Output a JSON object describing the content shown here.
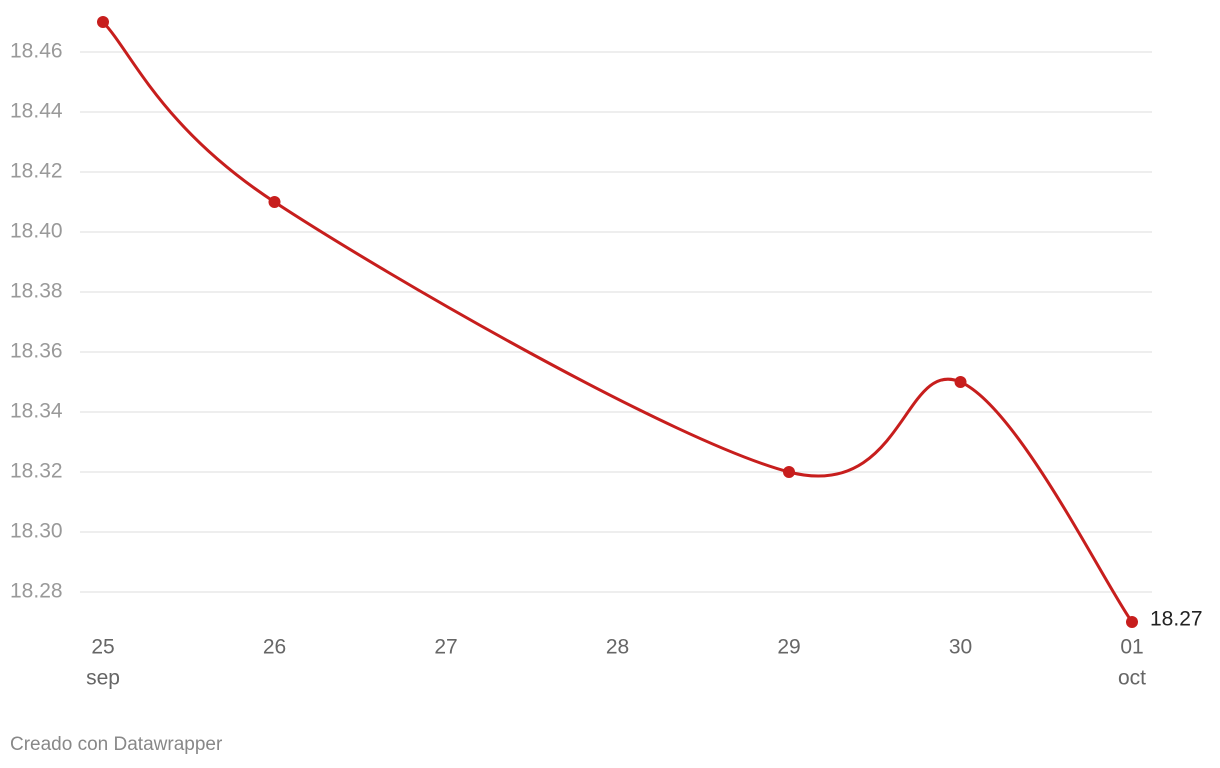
{
  "chart_data": {
    "type": "line",
    "x": [
      "25 sep",
      "26 sep",
      "29 sep",
      "30 sep",
      "01 oct"
    ],
    "series": [
      {
        "color": "#c71e1d",
        "values": [
          18.47,
          18.41,
          18.32,
          18.35,
          18.27
        ]
      }
    ],
    "ylim": [
      18.27,
      18.47
    ],
    "yticks": [
      {
        "value": 18.28,
        "label": "18.28"
      },
      {
        "value": 18.3,
        "label": "18.30"
      },
      18.32,
      18.34,
      18.36,
      18.38,
      {
        "value": 18.4,
        "label": "18.40"
      },
      18.42,
      18.44,
      18.46
    ],
    "xlim": [
      "25 sep",
      "01 oct"
    ],
    "xticks": [
      {
        "value": "25 sep",
        "label": "25"
      },
      {
        "value": "26 sep",
        "label": "26"
      },
      {
        "value": "27 sep",
        "label": "27"
      },
      {
        "value": "28 sep",
        "label": "28"
      },
      {
        "value": "29 sep",
        "label": "29"
      },
      {
        "value": "30 sep",
        "label": "30"
      },
      {
        "value": "01 oct",
        "label": "01"
      }
    ],
    "xtick_months": [
      {
        "value": "25 sep",
        "label": "sep"
      },
      {
        "value": "01 oct",
        "label": "oct"
      }
    ],
    "grid": true,
    "source": "Creado con Datawrapper"
  }
}
